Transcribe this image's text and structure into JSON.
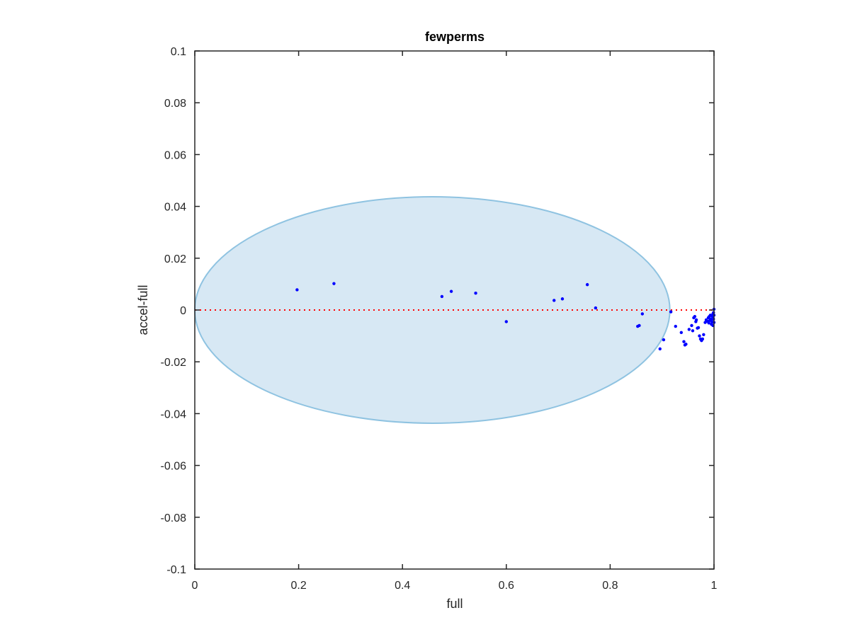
{
  "chart_data": {
    "type": "scatter",
    "title": "fewperms",
    "xlabel": "full",
    "ylabel": "accel-full",
    "xlim": [
      0,
      1
    ],
    "ylim": [
      -0.1,
      0.1
    ],
    "x_ticks": [
      0,
      0.2,
      0.4,
      0.6,
      0.8,
      1
    ],
    "x_tick_labels": [
      "0",
      "0.2",
      "0.4",
      "0.6",
      "0.8",
      "1"
    ],
    "y_ticks": [
      -0.1,
      -0.08,
      -0.06,
      -0.04,
      -0.02,
      0,
      0.02,
      0.04,
      0.06,
      0.08,
      0.1
    ],
    "y_tick_labels": [
      "-0.1",
      "-0.08",
      "-0.06",
      "-0.04",
      "-0.02",
      "0",
      "0.02",
      "0.04",
      "0.06",
      "0.08",
      "0.1"
    ],
    "grid": false,
    "box": true,
    "colors": {
      "points": "#0000ff",
      "zero_line": "#ff0000",
      "ellipse_fill": "#d7e8f4",
      "ellipse_edge": "#8fc3e1",
      "axes": "#262626"
    },
    "ellipse": {
      "center": [
        0.4575,
        0.0
      ],
      "x_radius": 0.4575,
      "y_radius": 0.0437
    },
    "reference_line": {
      "y": 0,
      "x_range": [
        0,
        1
      ],
      "style": "dotted"
    },
    "series": [
      {
        "values": [
          [
            0.197,
            0.0078
          ],
          [
            0.268,
            0.0102
          ],
          [
            0.476,
            0.0052
          ],
          [
            0.494,
            0.0072
          ],
          [
            0.541,
            0.0065
          ],
          [
            0.6,
            -0.0045
          ],
          [
            0.692,
            0.0037
          ],
          [
            0.708,
            0.0043
          ],
          [
            0.756,
            0.0098
          ],
          [
            0.772,
            0.0008
          ],
          [
            0.853,
            -0.0063
          ],
          [
            0.856,
            -0.006
          ],
          [
            0.862,
            -0.0015
          ],
          [
            0.896,
            -0.015
          ],
          [
            0.903,
            -0.0115
          ],
          [
            0.917,
            -0.0007
          ],
          [
            0.926,
            -0.0063
          ],
          [
            0.937,
            -0.0087
          ],
          [
            0.942,
            -0.0122
          ],
          [
            0.944,
            -0.0135
          ],
          [
            0.946,
            -0.0132
          ],
          [
            0.952,
            -0.0075
          ],
          [
            0.957,
            -0.006
          ],
          [
            0.959,
            -0.008
          ],
          [
            0.961,
            -0.003
          ],
          [
            0.963,
            -0.0025
          ],
          [
            0.965,
            -0.0045
          ],
          [
            0.966,
            -0.0038
          ],
          [
            0.968,
            -0.007
          ],
          [
            0.97,
            -0.0068
          ],
          [
            0.972,
            -0.01
          ],
          [
            0.974,
            -0.0112
          ],
          [
            0.976,
            -0.0118
          ],
          [
            0.978,
            -0.0112
          ],
          [
            0.98,
            -0.0095
          ],
          [
            0.983,
            -0.0048
          ],
          [
            0.985,
            -0.0038
          ],
          [
            0.987,
            -0.0043
          ],
          [
            0.989,
            -0.003
          ],
          [
            0.99,
            -0.005
          ],
          [
            0.991,
            -0.0025
          ],
          [
            0.992,
            -0.004
          ],
          [
            0.993,
            -0.002
          ],
          [
            0.994,
            -0.0035
          ],
          [
            0.995,
            -0.0055
          ],
          [
            0.996,
            -0.0045
          ],
          [
            0.997,
            -0.0025
          ],
          [
            0.998,
            -0.0015
          ],
          [
            0.998,
            -0.006
          ],
          [
            0.999,
            -0.001
          ],
          [
            0.999,
            -0.0035
          ],
          [
            1.0,
            0.0003
          ],
          [
            1.0,
            -0.002
          ],
          [
            1.0,
            -0.0048
          ]
        ]
      }
    ]
  }
}
